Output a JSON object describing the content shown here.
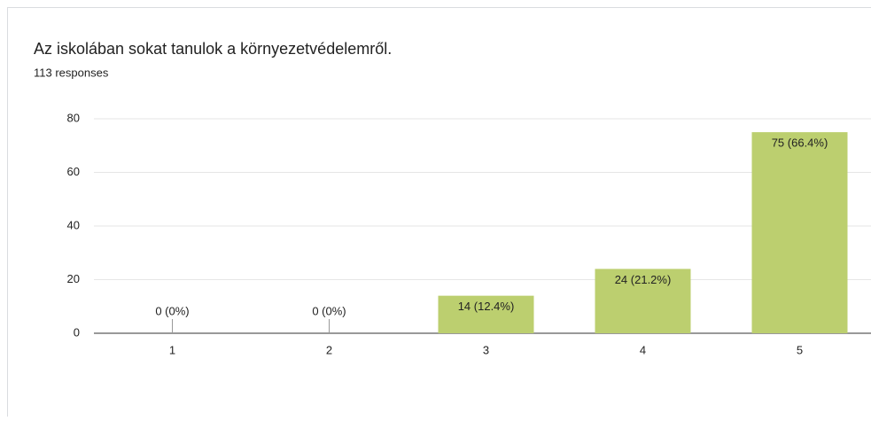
{
  "chart_data": {
    "type": "bar",
    "title": "Az iskolában sokat tanulok a környezetvédelemről.",
    "subtitle": "113 responses",
    "categories": [
      "1",
      "2",
      "3",
      "4",
      "5"
    ],
    "values": [
      0,
      0,
      14,
      24,
      75
    ],
    "value_labels": [
      "0 (0%)",
      "0 (0%)",
      "14 (12.4%)",
      "24 (21.2%)",
      "75 (66.4%)"
    ],
    "color": "#bccf6f",
    "ylim": [
      0,
      80
    ],
    "yticks": [
      0,
      20,
      40,
      60,
      80
    ],
    "grid": true
  }
}
